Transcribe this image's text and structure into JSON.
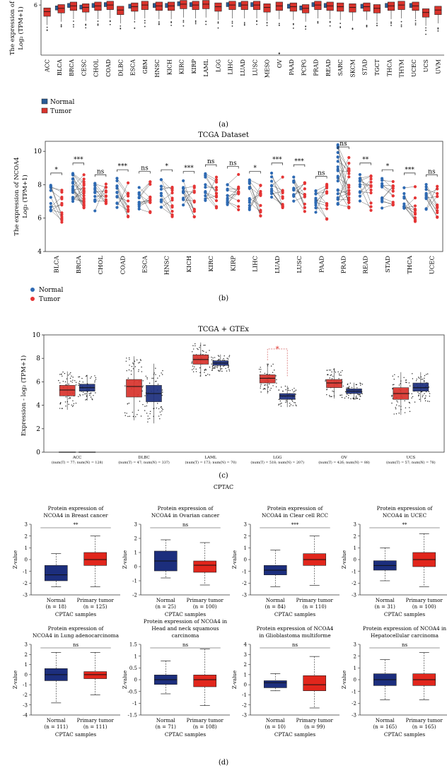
{
  "figure": {
    "labels": {
      "a": "(a)",
      "b": "(b)",
      "c": "(c)",
      "d": "(d)"
    },
    "colors": {
      "normal": "#2a5c96",
      "tumor": "#d9332c",
      "dark_navy": "#1c2e7d",
      "cptac_red": "#e1261c"
    }
  },
  "chart_data": [
    {
      "id": "a",
      "type": "box",
      "title": "",
      "ylabel": [
        "The expression of",
        "Log₂ (TPM+1)"
      ],
      "ylim": [
        0,
        6.6
      ],
      "legend": [
        "Normal",
        "Tumor"
      ],
      "categories": [
        "ACC",
        "BLCA",
        "BRCA",
        "CESC",
        "CHOL",
        "COAD",
        "DLBC",
        "ESCA",
        "GBM",
        "HNSC",
        "KICH",
        "KIRC",
        "KIRP",
        "LAML",
        "LGG",
        "LIHC",
        "LUAD",
        "LUSC",
        "MESO",
        "OV",
        "PAAD",
        "PCPG",
        "PRAD",
        "READ",
        "SARC",
        "SKCM",
        "STAD",
        "TGCT",
        "THCA",
        "THYM",
        "UCEC",
        "UCS",
        "UVM"
      ],
      "tumor_median": [
        5.2,
        5.6,
        5.9,
        5.7,
        5.9,
        6.0,
        5.4,
        5.8,
        6.0,
        5.9,
        5.9,
        6.1,
        6.0,
        6.1,
        5.8,
        6.0,
        6.0,
        6.0,
        5.7,
        5.9,
        5.8,
        5.6,
        6.0,
        5.9,
        5.8,
        5.7,
        5.8,
        5.6,
        5.9,
        6.0,
        5.9,
        5.1,
        5.4
      ],
      "has_normal": [
        false,
        true,
        true,
        true,
        true,
        true,
        false,
        true,
        false,
        true,
        true,
        true,
        true,
        false,
        false,
        true,
        true,
        true,
        false,
        false,
        true,
        true,
        true,
        true,
        false,
        false,
        true,
        false,
        true,
        false,
        true,
        false,
        false
      ]
    },
    {
      "id": "b",
      "type": "paired-scatter",
      "title": "TCGA Dataset",
      "ylabel": [
        "The expression of NCOA4",
        "Log₂ (TPM+1)"
      ],
      "ylim": [
        4,
        10.6
      ],
      "yticks": [
        4,
        6,
        8,
        10
      ],
      "legend": [
        "Normal",
        "Tumor"
      ],
      "categories": [
        "BLCA",
        "BRCA",
        "CHOL",
        "COAD",
        "ESCA",
        "HNSC",
        "KICH",
        "KIRC",
        "KIRP",
        "LIHC",
        "LUAD",
        "LUSC",
        "PAAD",
        "PRAD",
        "READ",
        "STAD",
        "THCA",
        "UCEC"
      ],
      "significance": [
        "*",
        "***",
        "ns",
        "***",
        "ns",
        "*",
        "***",
        "ns",
        "ns",
        "*",
        "***",
        "***",
        "ns",
        "ns",
        "**",
        "*",
        "***",
        "ns"
      ],
      "normal_mean": [
        7.3,
        7.9,
        7.2,
        7.5,
        7.4,
        7.5,
        7.4,
        7.8,
        7.7,
        7.4,
        7.9,
        7.8,
        7.1,
        8.6,
        7.9,
        7.5,
        7.3,
        7.2
      ],
      "tumor_mean": [
        6.8,
        7.7,
        7.0,
        7.1,
        7.3,
        7.0,
        6.9,
        7.6,
        7.6,
        7.2,
        7.6,
        7.5,
        7.0,
        8.4,
        7.5,
        7.2,
        6.8,
        7.0
      ]
    },
    {
      "id": "c",
      "type": "box",
      "title": "TCGA + GTEx",
      "ylabel": "Expression - log₂ (TPM+1)",
      "ylim": [
        0,
        10
      ],
      "yticks": [
        0,
        2,
        4,
        6,
        8,
        10
      ],
      "categories": [
        "ACC",
        "DLBC",
        "LAML",
        "LGG",
        "OV",
        "UCS"
      ],
      "sample_labels": [
        "(num(T) = 77; num(N) = 128)",
        "(num(T) = 47; num(N) = 337)",
        "(num(T) = 173; num(N) = 70)",
        "(num(T) = 518; num(N) = 207)",
        "(num(T) = 426; num(N) = 88)",
        "(num(T) = 57; num(N) = 78)"
      ],
      "tumor_box": [
        [
          4.8,
          5.3,
          5.7
        ],
        [
          4.7,
          5.6,
          6.2
        ],
        [
          7.5,
          7.9,
          8.3
        ],
        [
          5.9,
          6.3,
          6.6
        ],
        [
          5.5,
          5.9,
          6.2
        ],
        [
          4.5,
          5.0,
          5.5
        ]
      ],
      "normal_box": [
        [
          5.2,
          5.5,
          5.8
        ],
        [
          4.3,
          5.0,
          5.7
        ],
        [
          7.4,
          7.6,
          7.8
        ],
        [
          4.5,
          4.8,
          5.0
        ],
        [
          5.0,
          5.2,
          5.4
        ],
        [
          5.2,
          5.5,
          5.9
        ]
      ],
      "significant": [
        false,
        false,
        false,
        true,
        false,
        false
      ]
    },
    {
      "id": "d",
      "type": "box",
      "title": "CPTAC",
      "xlabel": "CPTAC samples",
      "ylabel": "Z-value",
      "panels": [
        {
          "title": [
            "Protein expression of",
            "NCOA4 in Breast cancer"
          ],
          "sig": "**",
          "ylim": [
            -3,
            3
          ],
          "ticks": [
            -3,
            -2,
            -1,
            0,
            1,
            2,
            3
          ],
          "groups": [
            {
              "name": "Normal",
              "n": "(n = 18)",
              "q": [
                -2.3,
                -1.8,
                -1.3,
                -0.5,
                0.5
              ]
            },
            {
              "name": "Primary tumor",
              "n": "(n = 125)",
              "q": [
                -2.3,
                -0.5,
                0.0,
                0.6,
                2.0
              ]
            }
          ]
        },
        {
          "title": [
            "Protein expression of",
            "NCOA4 in Ovarian cancer"
          ],
          "sig": "ns",
          "ylim": [
            -2,
            3
          ],
          "ticks": [
            -2,
            -1,
            0,
            1,
            2,
            3
          ],
          "groups": [
            {
              "name": "Normal",
              "n": "(n = 25)",
              "q": [
                -0.8,
                -0.3,
                0.4,
                1.1,
                1.9
              ]
            },
            {
              "name": "Primary tumor",
              "n": "(n = 100)",
              "q": [
                -1.3,
                -0.4,
                0.1,
                0.4,
                1.7
              ]
            }
          ]
        },
        {
          "title": [
            "Protein expression of",
            "NCOA4 in Clear cell RCC"
          ],
          "sig": "***",
          "ylim": [
            -3,
            3
          ],
          "ticks": [
            -3,
            -2,
            -1,
            0,
            1,
            2,
            3
          ],
          "groups": [
            {
              "name": "Normal",
              "n": "(n = 84)",
              "q": [
                -2.3,
                -1.3,
                -0.9,
                -0.5,
                0.8
              ]
            },
            {
              "name": "Primary tumor",
              "n": "(n = 110)",
              "q": [
                -2.2,
                -0.5,
                0.0,
                0.5,
                2.0
              ]
            }
          ]
        },
        {
          "title": [
            "Protein expression of",
            "NCOA4 in UCEC"
          ],
          "sig": "**",
          "ylim": [
            -3,
            3
          ],
          "ticks": [
            -3,
            -2,
            -1,
            0,
            1,
            2,
            3
          ],
          "groups": [
            {
              "name": "Normal",
              "n": "(n = 31)",
              "q": [
                -1.8,
                -0.9,
                -0.5,
                -0.1,
                1.0
              ]
            },
            {
              "name": "Primary tumor",
              "n": "(n = 100)",
              "q": [
                -2.3,
                -0.6,
                0.0,
                0.6,
                2.2
              ]
            }
          ]
        },
        {
          "title": [
            "Protein expression of",
            "NCOA4 in Lung adenocarcinoma"
          ],
          "sig": "ns",
          "ylim": [
            -4,
            3
          ],
          "ticks": [
            -4,
            -3,
            -2,
            -1,
            0,
            1,
            2,
            3
          ],
          "groups": [
            {
              "name": "Normal",
              "n": "(n = 111)",
              "q": [
                -2.8,
                -0.6,
                0.0,
                0.6,
                2.2
              ]
            },
            {
              "name": "Primary tumor",
              "n": "(n = 111)",
              "q": [
                -2.0,
                -0.4,
                0.0,
                0.3,
                2.2
              ]
            }
          ]
        },
        {
          "title": [
            "Protein expression of NCOA4 in",
            "Head and neck squamous",
            "carcinoma"
          ],
          "sig": "ns",
          "ylim": [
            -1.5,
            1.5
          ],
          "ticks": [
            -1.5,
            -1,
            -0.5,
            0,
            0.5,
            1,
            1.5
          ],
          "groups": [
            {
              "name": "Normal",
              "n": "(n = 71)",
              "q": [
                -0.6,
                -0.2,
                0.0,
                0.2,
                0.8
              ]
            },
            {
              "name": "Primary tumor",
              "n": "(n = 108)",
              "q": [
                -1.1,
                -0.3,
                0.0,
                0.2,
                1.3
              ]
            }
          ]
        },
        {
          "title": [
            "Protein expression of NCOA4",
            "in Glioblastoma multiforme"
          ],
          "sig": "ns",
          "ylim": [
            -3,
            4
          ],
          "ticks": [
            -3,
            -2,
            -1,
            0,
            1,
            2,
            3,
            4
          ],
          "groups": [
            {
              "name": "Normal",
              "n": "(n = 10)",
              "q": [
                -0.6,
                -0.3,
                0.2,
                0.4,
                1.1
              ]
            },
            {
              "name": "Primary tumor",
              "n": "(n = 99)",
              "q": [
                -2.3,
                -0.6,
                0.0,
                0.9,
                2.8
              ]
            }
          ]
        },
        {
          "title": [
            "Protein expression of NCOA4 in",
            "Hepatocellular carcinoma"
          ],
          "sig": "ns",
          "ylim": [
            -3,
            3
          ],
          "ticks": [
            -3,
            -2,
            -1,
            0,
            1,
            2,
            3
          ],
          "groups": [
            {
              "name": "Normal",
              "n": "(n = 165)",
              "q": [
                -1.7,
                -0.5,
                0.0,
                0.5,
                1.7
              ]
            },
            {
              "name": "Primary tumor",
              "n": "(n = 165)",
              "q": [
                -1.7,
                -0.5,
                0.0,
                0.5,
                2.3
              ]
            }
          ]
        }
      ]
    }
  ]
}
